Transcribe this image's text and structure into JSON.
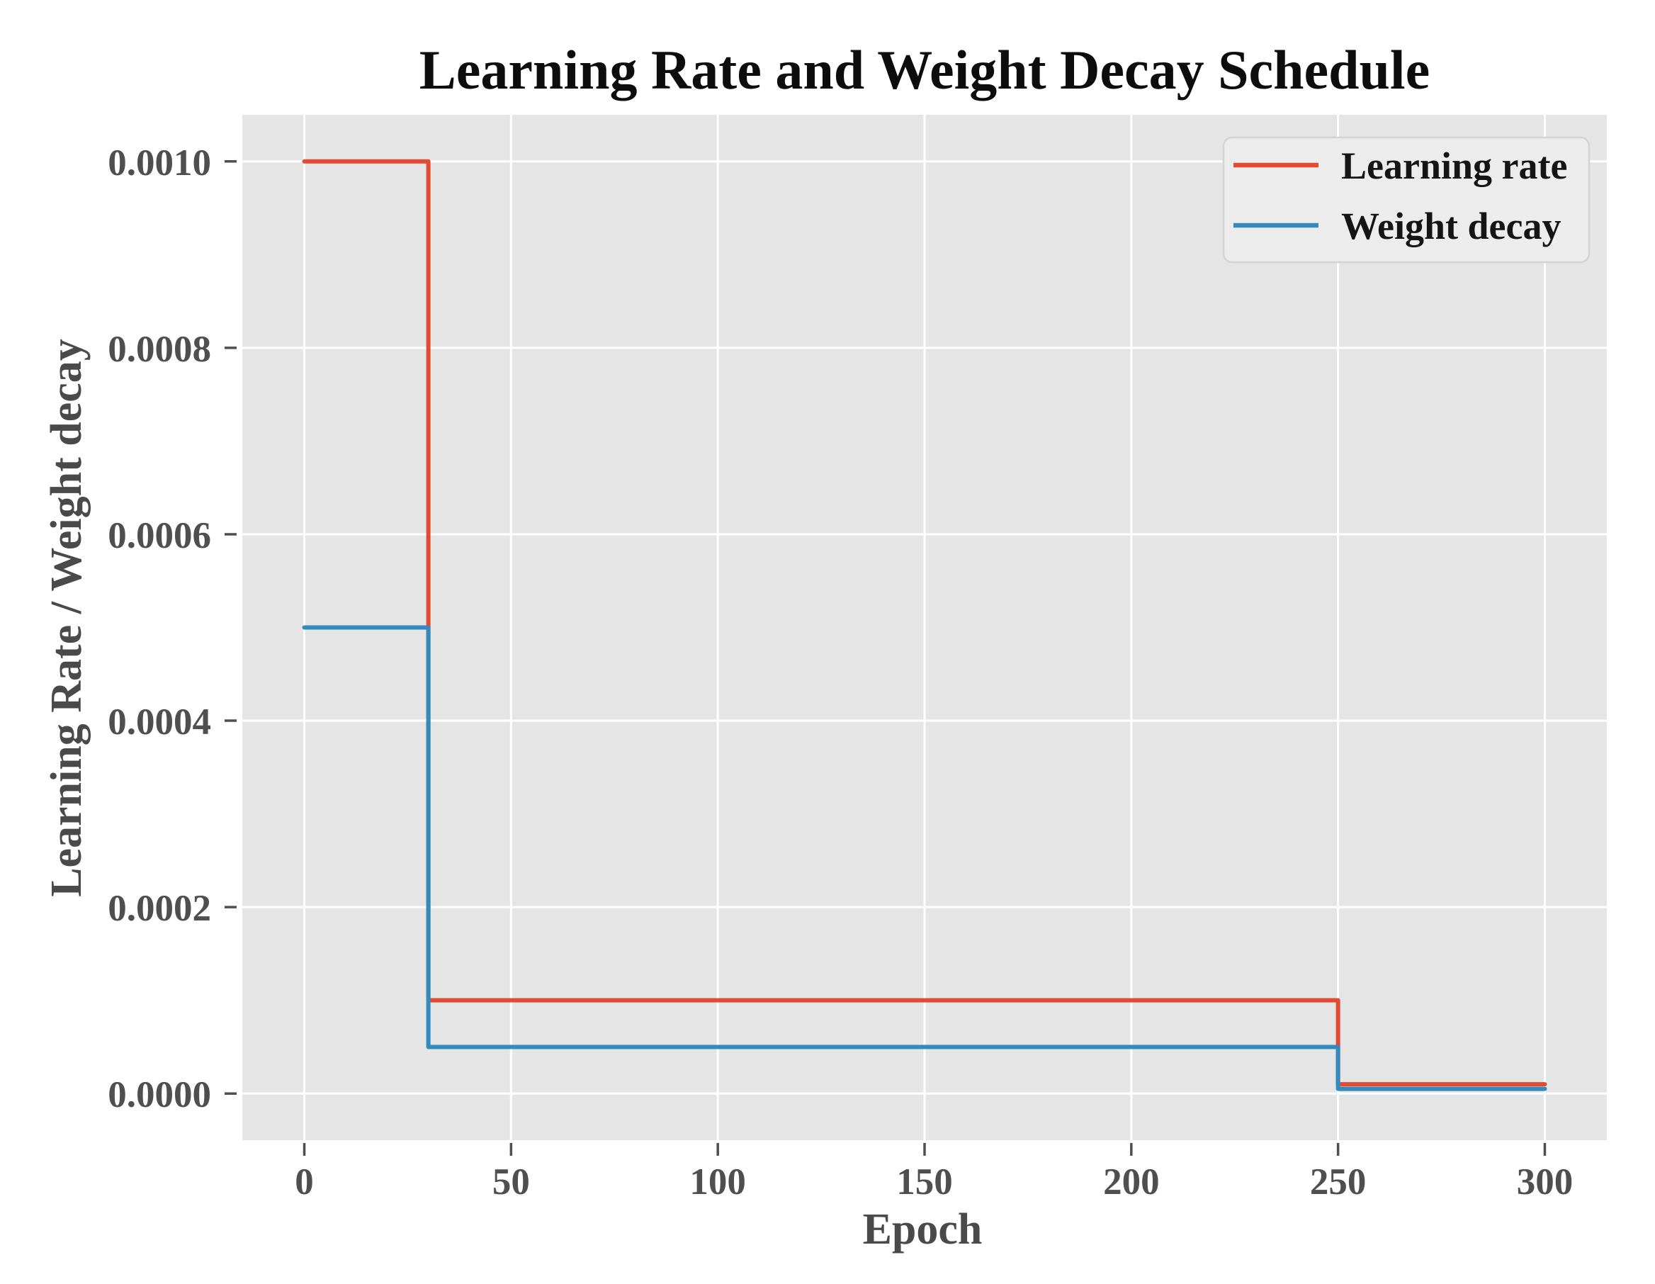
{
  "chart_data": {
    "type": "line",
    "subtype": "step",
    "step_mode": "post",
    "title": "Learning Rate and Weight Decay Schedule",
    "xlabel": "Epoch",
    "ylabel": "Learning Rate / Weight decay",
    "x_ticks": [
      0,
      50,
      100,
      150,
      200,
      250,
      300
    ],
    "x_tick_labels": [
      "0",
      "50",
      "100",
      "150",
      "200",
      "250",
      "300"
    ],
    "y_ticks": [
      0.0,
      0.0002,
      0.0004,
      0.0006,
      0.0008,
      0.001
    ],
    "y_tick_labels": [
      "0.0000",
      "0.0002",
      "0.0004",
      "0.0006",
      "0.0008",
      "0.0010"
    ],
    "xlim": [
      -15,
      315
    ],
    "ylim": [
      -5e-05,
      0.00105
    ],
    "grid": true,
    "plot_bg_color": "#e5e5e5",
    "grid_color": "#ffffff",
    "tick_color": "#4f4f4f",
    "legend": {
      "position": "upper right",
      "entries": [
        "Learning rate",
        "Weight decay"
      ]
    },
    "series": [
      {
        "name": "Learning rate",
        "color": "#e24a33",
        "x": [
          0,
          30,
          250,
          300
        ],
        "y": [
          0.001,
          0.0001,
          1e-05,
          1e-05
        ]
      },
      {
        "name": "Weight decay",
        "color": "#348abd",
        "x": [
          0,
          30,
          250,
          300
        ],
        "y": [
          0.0005,
          5e-05,
          5e-06,
          5e-06
        ]
      }
    ]
  }
}
